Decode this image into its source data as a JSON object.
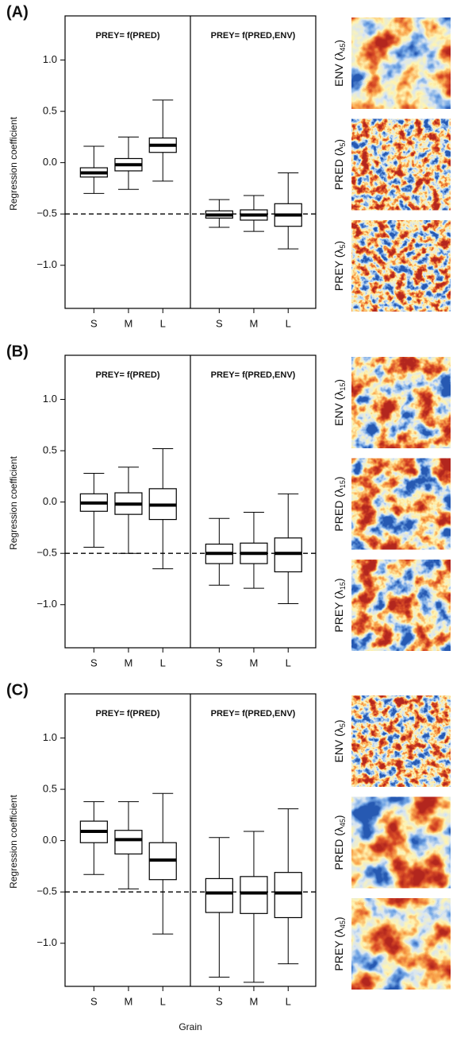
{
  "chart_data": [
    {
      "type": "box",
      "label": "(A)",
      "ylabel": "Regression coefficient",
      "ylim": [
        -1.42,
        1.43
      ],
      "yticks": [
        {
          "value": -1.0,
          "label": "−1.0"
        },
        {
          "value": -0.5,
          "label": "−0.5"
        },
        {
          "value": 0.0,
          "label": "0.0"
        },
        0.5,
        {
          "value": 1.0,
          "label": "1.0"
        }
      ],
      "categories": [
        "S",
        "M",
        "L"
      ],
      "hline": -0.5,
      "groups": [
        {
          "title": "PREY= f(PRED)",
          "boxes": [
            {
              "min": -0.3,
              "q1": -0.14,
              "median": -0.1,
              "q3": -0.05,
              "max": 0.16
            },
            {
              "min": -0.26,
              "q1": -0.08,
              "median": -0.02,
              "q3": 0.04,
              "max": 0.25
            },
            {
              "min": -0.18,
              "q1": 0.1,
              "median": 0.17,
              "q3": 0.24,
              "max": 0.61
            }
          ]
        },
        {
          "title": "PREY= f(PRED,ENV)",
          "boxes": [
            {
              "min": -0.63,
              "q1": -0.54,
              "median": -0.51,
              "q3": -0.47,
              "max": -0.36
            },
            {
              "min": -0.67,
              "q1": -0.56,
              "median": -0.51,
              "q3": -0.46,
              "max": -0.32
            },
            {
              "min": -0.84,
              "q1": -0.62,
              "median": -0.51,
              "q3": -0.4,
              "max": -0.1
            }
          ]
        }
      ],
      "images": [
        {
          "label": [
            "ENV (λ",
            "45",
            ")"
          ]
        },
        {
          "label": [
            "PRED (λ",
            "5",
            ")"
          ]
        },
        {
          "label": [
            "PREY (λ",
            "5",
            ")"
          ]
        }
      ]
    },
    {
      "type": "box",
      "label": "(B)",
      "ylabel": "Regression coefficient",
      "ylim": [
        -1.42,
        1.43
      ],
      "yticks": [
        {
          "value": -1.0,
          "label": "−1.0"
        },
        {
          "value": -0.5,
          "label": "−0.5"
        },
        {
          "value": 0.0,
          "label": "0.0"
        },
        0.5,
        {
          "value": 1.0,
          "label": "1.0"
        }
      ],
      "categories": [
        "S",
        "M",
        "L"
      ],
      "hline": -0.5,
      "groups": [
        {
          "title": "PREY= f(PRED)",
          "boxes": [
            {
              "min": -0.44,
              "q1": -0.09,
              "median": -0.01,
              "q3": 0.08,
              "max": 0.28
            },
            {
              "min": -0.5,
              "q1": -0.12,
              "median": -0.02,
              "q3": 0.09,
              "max": 0.34
            },
            {
              "min": -0.65,
              "q1": -0.17,
              "median": -0.03,
              "q3": 0.13,
              "max": 0.52
            }
          ]
        },
        {
          "title": "PREY= f(PRED,ENV)",
          "boxes": [
            {
              "min": -0.81,
              "q1": -0.6,
              "median": -0.5,
              "q3": -0.41,
              "max": -0.16
            },
            {
              "min": -0.84,
              "q1": -0.6,
              "median": -0.5,
              "q3": -0.4,
              "max": -0.1
            },
            {
              "min": -0.99,
              "q1": -0.68,
              "median": -0.5,
              "q3": -0.35,
              "max": 0.08
            }
          ]
        }
      ],
      "images": [
        {
          "label": [
            "ENV (λ",
            "15",
            ")"
          ]
        },
        {
          "label": [
            "PRED (λ",
            "15",
            ")"
          ]
        },
        {
          "label": [
            "PREY (λ",
            "15",
            ")"
          ]
        }
      ]
    },
    {
      "type": "box",
      "label": "(C)",
      "ylabel": "Regression coefficient",
      "xlabel": "Grain",
      "ylim": [
        -1.42,
        1.43
      ],
      "yticks": [
        {
          "value": -1.0,
          "label": "−1.0"
        },
        {
          "value": -0.5,
          "label": "−0.5"
        },
        {
          "value": 0.0,
          "label": "0.0"
        },
        0.5,
        {
          "value": 1.0,
          "label": "1.0"
        }
      ],
      "categories": [
        "S",
        "M",
        "L"
      ],
      "hline": -0.5,
      "groups": [
        {
          "title": "PREY= f(PRED)",
          "boxes": [
            {
              "min": -0.33,
              "q1": -0.02,
              "median": 0.09,
              "q3": 0.19,
              "max": 0.38
            },
            {
              "min": -0.47,
              "q1": -0.13,
              "median": 0.01,
              "q3": 0.1,
              "max": 0.38
            },
            {
              "min": -0.91,
              "q1": -0.38,
              "median": -0.19,
              "q3": -0.02,
              "max": 0.46
            }
          ]
        },
        {
          "title": "PREY= f(PRED,ENV)",
          "boxes": [
            {
              "min": -1.33,
              "q1": -0.7,
              "median": -0.51,
              "q3": -0.37,
              "max": 0.03
            },
            {
              "min": -1.38,
              "q1": -0.71,
              "median": -0.51,
              "q3": -0.35,
              "max": 0.09
            },
            {
              "min": -1.2,
              "q1": -0.75,
              "median": -0.51,
              "q3": -0.31,
              "max": 0.31
            }
          ]
        }
      ],
      "images": [
        {
          "label": [
            "ENV (λ",
            "5",
            ")"
          ]
        },
        {
          "label": [
            "PRED (λ",
            "45",
            ")"
          ]
        },
        {
          "label": [
            "PREY (λ",
            "45",
            ")"
          ]
        }
      ]
    }
  ]
}
